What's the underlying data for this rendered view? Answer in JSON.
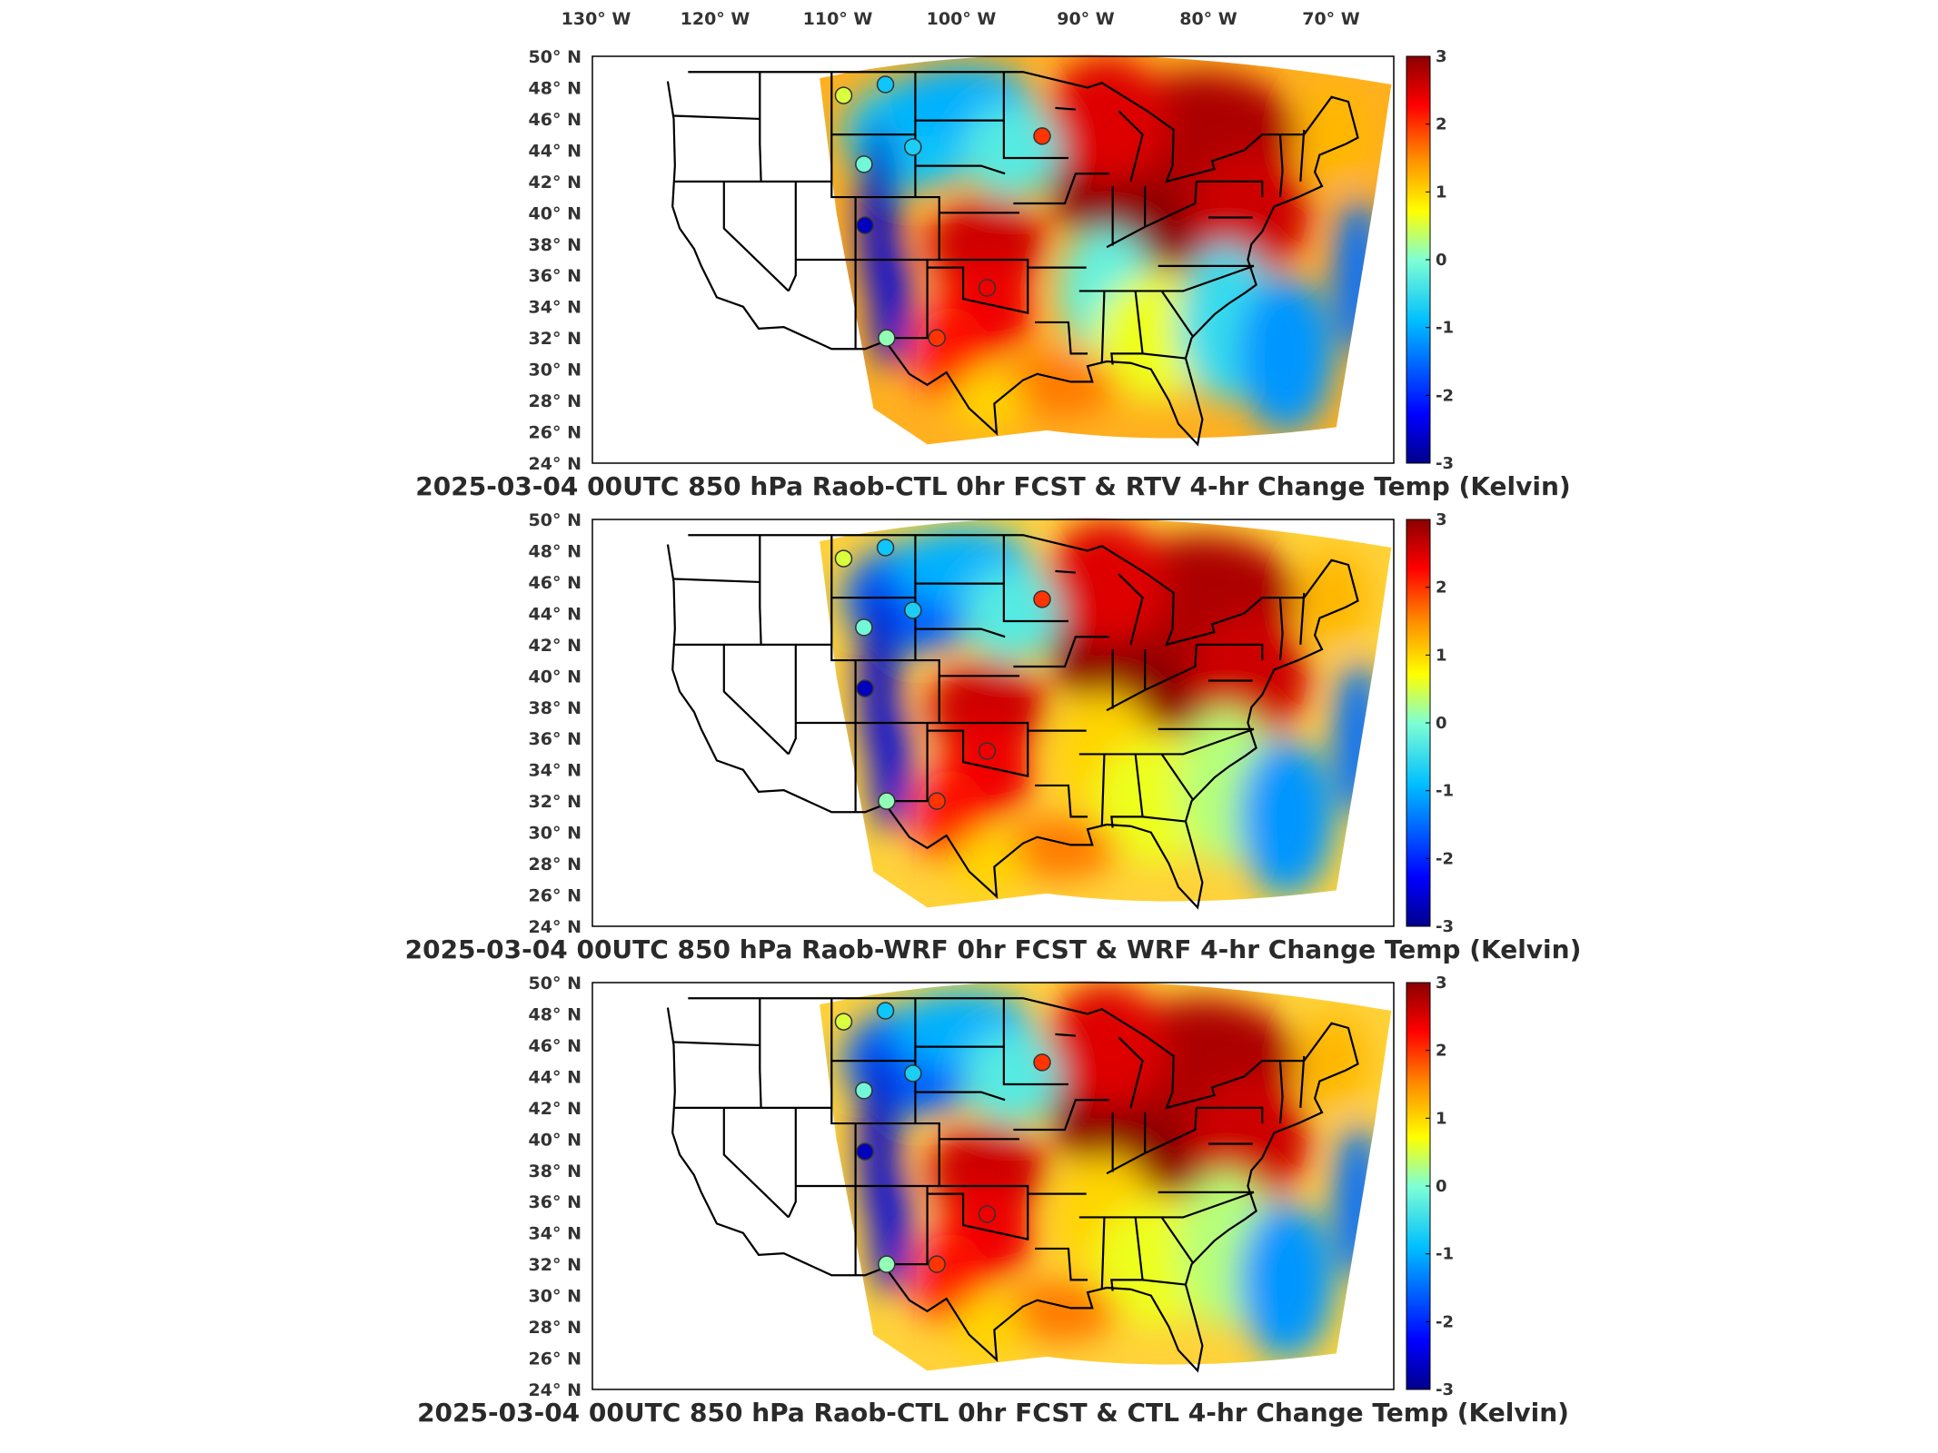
{
  "lon_labels": [
    "130° W",
    "120° W",
    "110° W",
    "100° W",
    "90° W",
    "80° W",
    "70° W"
  ],
  "lat_labels": [
    "50° N",
    "48° N",
    "46° N",
    "44° N",
    "42° N",
    "40° N",
    "38° N",
    "36° N",
    "34° N",
    "32° N",
    "30° N",
    "28° N",
    "26° N",
    "24° N"
  ],
  "colorbar": {
    "ticks": [
      "3",
      "2",
      "1",
      "0",
      "-1",
      "-2",
      "-3"
    ],
    "range": [
      -3,
      3
    ],
    "colors": [
      "#00008b",
      "#0000ff",
      "#00bfff",
      "#7fffd4",
      "#ffff00",
      "#ff8c00",
      "#ff0000",
      "#8b0000"
    ]
  },
  "panels": [
    {
      "title": "2025-03-04 00UTC 850 hPa Raob-CTL 0hr FCST & RTV 4-hr Change Temp (Kelvin)"
    },
    {
      "title": "2025-03-04 00UTC 850 hPa Raob-WRF 0hr FCST & WRF 4-hr Change Temp (Kelvin)"
    },
    {
      "title": "2025-03-04 00UTC 850 hPa Raob-CTL 0hr FCST & CTL 4-hr Change Temp (Kelvin)"
    }
  ],
  "stations": [
    {
      "lon": -110.0,
      "lat": 47.5,
      "values": [
        0.5,
        0.5,
        0.5
      ]
    },
    {
      "lon": -106.5,
      "lat": 48.2,
      "values": [
        -0.8,
        -0.8,
        -0.8
      ]
    },
    {
      "lon": -104.2,
      "lat": 44.2,
      "values": [
        -0.7,
        -0.7,
        -0.7
      ]
    },
    {
      "lon": -108.3,
      "lat": 43.1,
      "values": [
        -0.1,
        -0.1,
        -0.1
      ]
    },
    {
      "lon": -108.2,
      "lat": 39.2,
      "values": [
        -2.7,
        -2.7,
        -2.7
      ]
    },
    {
      "lon": -106.4,
      "lat": 32.0,
      "values": [
        0.1,
        0.1,
        0.1
      ]
    },
    {
      "lon": -102.2,
      "lat": 32.0,
      "values": [
        2.0,
        2.0,
        2.0
      ]
    },
    {
      "lon": -98.0,
      "lat": 35.2,
      "values": [
        2.4,
        2.4,
        2.4
      ]
    },
    {
      "lon": -93.4,
      "lat": 44.9,
      "values": [
        2.0,
        2.0,
        2.0
      ]
    }
  ]
}
